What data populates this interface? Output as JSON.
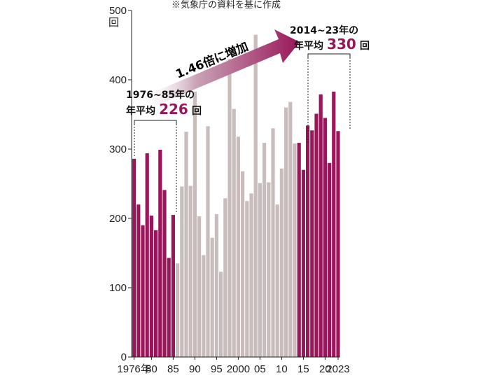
{
  "source_note": "※気象庁の資料を基に作成",
  "unit": "回",
  "annotations": {
    "multiplier": "1.46倍に増加",
    "early_period": "1976~85年の",
    "early_prefix": "年平均",
    "early_value": "226",
    "recent_period": "2014~23年の",
    "recent_prefix": "年平均",
    "recent_value": "330"
  },
  "colors": {
    "highlight": "#99165a",
    "muted": "#c9bcbc",
    "axis": "#222222"
  },
  "chart_data": {
    "type": "bar",
    "title": "",
    "xlabel": "",
    "ylabel": "回",
    "ylim": [
      0,
      500
    ],
    "yticks": [
      0,
      100,
      200,
      300,
      400,
      500
    ],
    "x_tick_labels": [
      {
        "year": 1976,
        "label": "1976年"
      },
      {
        "year": 1980,
        "label": "80"
      },
      {
        "year": 1985,
        "label": "85"
      },
      {
        "year": 1990,
        "label": "90"
      },
      {
        "year": 1995,
        "label": "95"
      },
      {
        "year": 2000,
        "label": "2000"
      },
      {
        "year": 2005,
        "label": "05"
      },
      {
        "year": 2010,
        "label": "10"
      },
      {
        "year": 2015,
        "label": "15"
      },
      {
        "year": 2020,
        "label": "20"
      },
      {
        "year": 2023,
        "label": "2023"
      }
    ],
    "highlight_ranges": [
      [
        1976,
        1985
      ],
      [
        2014,
        2023
      ]
    ],
    "years": [
      1976,
      1977,
      1978,
      1979,
      1980,
      1981,
      1982,
      1983,
      1984,
      1985,
      1986,
      1987,
      1988,
      1989,
      1990,
      1991,
      1992,
      1993,
      1994,
      1995,
      1996,
      1997,
      1998,
      1999,
      2000,
      2001,
      2002,
      2003,
      2004,
      2005,
      2006,
      2007,
      2008,
      2009,
      2010,
      2011,
      2012,
      2013,
      2014,
      2015,
      2016,
      2017,
      2018,
      2019,
      2020,
      2021,
      2022,
      2023
    ],
    "values": [
      286,
      220,
      190,
      294,
      204,
      183,
      299,
      241,
      143,
      205,
      135,
      246,
      325,
      247,
      383,
      203,
      147,
      333,
      172,
      206,
      123,
      229,
      430,
      358,
      318,
      268,
      225,
      236,
      465,
      251,
      309,
      252,
      330,
      220,
      272,
      360,
      368,
      308,
      309,
      270,
      334,
      327,
      351,
      379,
      345,
      280,
      383,
      326
    ]
  }
}
